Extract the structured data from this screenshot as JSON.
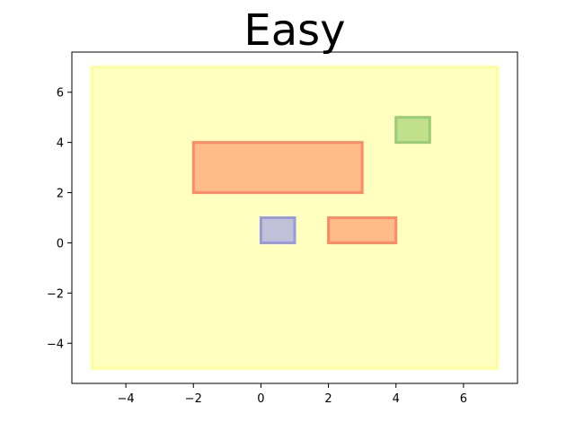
{
  "chart_data": {
    "type": "rectangles",
    "title": "Easy",
    "xlabel": "",
    "ylabel": "",
    "xlim": [
      -5.6,
      7.6
    ],
    "ylim": [
      -5.6,
      7.6
    ],
    "xticks": [
      -4,
      -2,
      0,
      2,
      4,
      6
    ],
    "yticks": [
      -4,
      -2,
      0,
      2,
      4,
      6
    ],
    "tick_labels": {
      "x": [
        "−4",
        "−2",
        "0",
        "2",
        "4",
        "6"
      ],
      "y": [
        "−4",
        "−2",
        "0",
        "2",
        "4",
        "6"
      ]
    },
    "grid": false,
    "rectangles": [
      {
        "id": "yellow-region",
        "x0": -5,
        "y0": -5,
        "x1": 7,
        "y1": 7,
        "fill": "#ffffc0",
        "stroke": "#ffff99"
      },
      {
        "id": "orange-large",
        "x0": -2,
        "y0": 2,
        "x1": 3,
        "y1": 4,
        "fill": "#ffbb88",
        "stroke": "#ff8866"
      },
      {
        "id": "orange-small",
        "x0": 2,
        "y0": 0,
        "x1": 4,
        "y1": 1,
        "fill": "#ffbb88",
        "stroke": "#ff8866"
      },
      {
        "id": "blue-square",
        "x0": 0,
        "y0": 0,
        "x1": 1,
        "y1": 1,
        "fill": "#c0c0d8",
        "stroke": "#9999dd"
      },
      {
        "id": "green-square",
        "x0": 4,
        "y0": 4,
        "x1": 5,
        "y1": 5,
        "fill": "#c0e08c",
        "stroke": "#99cc77"
      }
    ]
  }
}
